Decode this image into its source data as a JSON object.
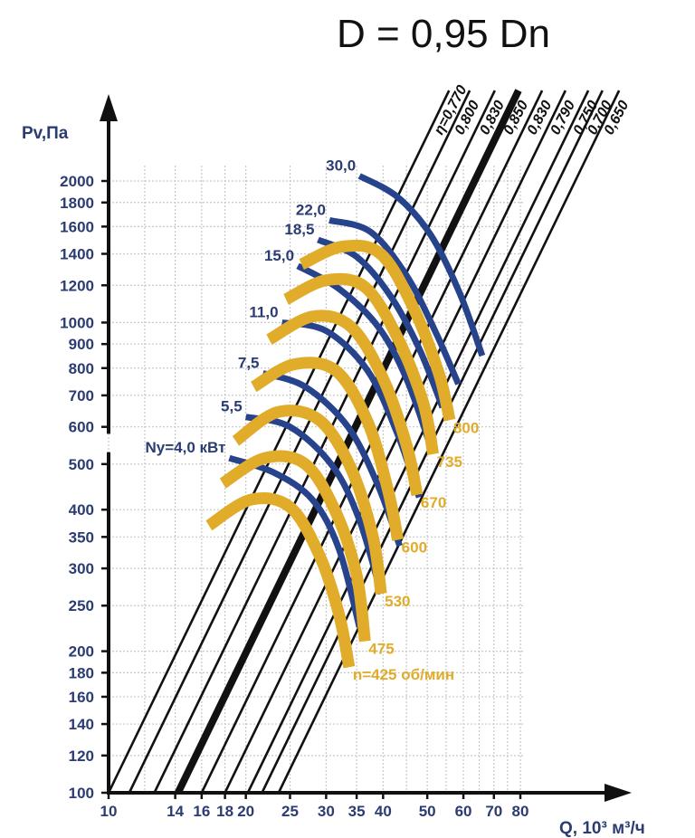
{
  "chart_data": {
    "type": "line",
    "title": "D = 0,95 Dn",
    "ylabel": "Pv,Па",
    "xlabel": "Q, 10³ м³/ч",
    "x_scale": "log",
    "y_scale": "log",
    "xlim": [
      10,
      80
    ],
    "ylim": [
      100,
      2000
    ],
    "x_ticks": [
      "10",
      "14",
      "16",
      "18",
      "20",
      "25",
      "30",
      "35",
      "40",
      "50",
      "60",
      "70",
      "80"
    ],
    "y_ticks": [
      "100",
      "120",
      "140",
      "160",
      "180",
      "200",
      "250",
      "300",
      "350",
      "400",
      "500",
      "600",
      "700",
      "800",
      "900",
      "1000",
      "1200",
      "1400",
      "1600",
      "1800",
      "2000"
    ],
    "grid": true,
    "efficiency_lines": {
      "labels": [
        "η=0,770",
        "0,800",
        "0,830",
        "0,850",
        "0,830",
        "0,790",
        "0,750",
        "0,700",
        "0,650"
      ],
      "bold_index": 3,
      "lines": [
        {
          "q_at_min_p": 10.0,
          "q_at_max_p": 34
        },
        {
          "q_at_min_p": 11.1,
          "q_at_max_p": 37.6
        },
        {
          "q_at_min_p": 12.6,
          "q_at_max_p": 42.6
        },
        {
          "q_at_min_p": 14.2,
          "q_at_max_p": 48.2
        },
        {
          "q_at_min_p": 16.0,
          "q_at_max_p": 54.3
        },
        {
          "q_at_min_p": 18.0,
          "q_at_max_p": 61.3
        },
        {
          "q_at_min_p": 20.2,
          "q_at_max_p": 68.6
        },
        {
          "q_at_min_p": 21.7,
          "q_at_max_p": 74.1
        },
        {
          "q_at_min_p": 23.6,
          "q_at_max_p": 80.3
        }
      ]
    },
    "speed_curves": {
      "unit_label": "n=425 об/мин",
      "series": [
        {
          "name": "425",
          "label": "n=425 об/мин",
          "points": [
            [
              16.6,
              370
            ],
            [
              20.5,
              420
            ],
            [
              25,
              405
            ],
            [
              29,
              320
            ],
            [
              32,
              240
            ],
            [
              33.7,
              185
            ]
          ]
        },
        {
          "name": "475",
          "label": "475",
          "points": [
            [
              17.8,
              455
            ],
            [
              22,
              515
            ],
            [
              27,
              500
            ],
            [
              31.5,
              395
            ],
            [
              35,
              290
            ],
            [
              36.5,
              210
            ]
          ]
        },
        {
          "name": "530",
          "label": "530",
          "points": [
            [
              19,
              560
            ],
            [
              23.5,
              645
            ],
            [
              29,
              620
            ],
            [
              34,
              490
            ],
            [
              38,
              350
            ],
            [
              39.6,
              265
            ]
          ]
        },
        {
          "name": "600",
          "label": "600",
          "points": [
            [
              20.8,
              730
            ],
            [
              25.5,
              815
            ],
            [
              31.5,
              790
            ],
            [
              37,
              615
            ],
            [
              41,
              440
            ],
            [
              43.1,
              345
            ]
          ]
        },
        {
          "name": "670",
          "label": "670",
          "points": [
            [
              22.5,
              920
            ],
            [
              28,
              1030
            ],
            [
              34,
              980
            ],
            [
              40,
              760
            ],
            [
              45,
              550
            ],
            [
              47.5,
              430
            ]
          ]
        },
        {
          "name": "735",
          "label": "735",
          "points": [
            [
              24.5,
              1120
            ],
            [
              30,
              1230
            ],
            [
              36.5,
              1190
            ],
            [
              43,
              930
            ],
            [
              49,
              675
            ],
            [
              51.5,
              525
            ]
          ]
        },
        {
          "name": "800",
          "label": "800",
          "points": [
            [
              26.5,
              1330
            ],
            [
              32.5,
              1450
            ],
            [
              39.5,
              1400
            ],
            [
              46.5,
              1080
            ],
            [
              53,
              780
            ],
            [
              56,
              620
            ]
          ]
        }
      ]
    },
    "power_curves": {
      "series": [
        {
          "name": "4,0",
          "label": "Ny=4,0 кВт",
          "points": [
            [
              18.4,
              515
            ],
            [
              23,
              480
            ],
            [
              28,
              420
            ],
            [
              32,
              330
            ],
            [
              35.5,
              225
            ]
          ]
        },
        {
          "name": "5,5",
          "label": "5,5",
          "points": [
            [
              20,
              630
            ],
            [
              25,
              600
            ],
            [
              31,
              495
            ],
            [
              35.5,
              380
            ],
            [
              39.6,
              265
            ]
          ]
        },
        {
          "name": "7,5",
          "label": "7,5",
          "points": [
            [
              21.8,
              780
            ],
            [
              27,
              730
            ],
            [
              33.5,
              600
            ],
            [
              39,
              450
            ],
            [
              43.5,
              335
            ]
          ]
        },
        {
          "name": "11,0",
          "label": "11,0",
          "points": [
            [
              24,
              1000
            ],
            [
              30,
              960
            ],
            [
              37,
              790
            ],
            [
              43,
              580
            ],
            [
              48,
              425
            ]
          ]
        },
        {
          "name": "15,0",
          "label": "15,0",
          "points": [
            [
              26,
              1320
            ],
            [
              32,
              1180
            ],
            [
              39,
              980
            ],
            [
              45,
              760
            ],
            [
              51,
              540
            ]
          ]
        },
        {
          "name": "18,5",
          "label": "18,5",
          "points": [
            [
              28.8,
              1500
            ],
            [
              35,
              1380
            ],
            [
              41.5,
              1140
            ],
            [
              48,
              880
            ],
            [
              54,
              660
            ]
          ]
        },
        {
          "name": "22,0",
          "label": "22,0",
          "points": [
            [
              30.5,
              1650
            ],
            [
              37.5,
              1560
            ],
            [
              45,
              1260
            ],
            [
              52,
              960
            ],
            [
              58.5,
              740
            ]
          ]
        },
        {
          "name": "30,0",
          "label": "30,0",
          "points": [
            [
              35.5,
              2050
            ],
            [
              43,
              1850
            ],
            [
              51,
              1530
            ],
            [
              59,
              1150
            ],
            [
              66,
              850
            ]
          ]
        }
      ]
    },
    "colors": {
      "speed": "#e0ac2a",
      "power": "#26438c",
      "efficiency": "#111111",
      "grid": "#c8c8c8",
      "text": "#2b3c73"
    }
  }
}
